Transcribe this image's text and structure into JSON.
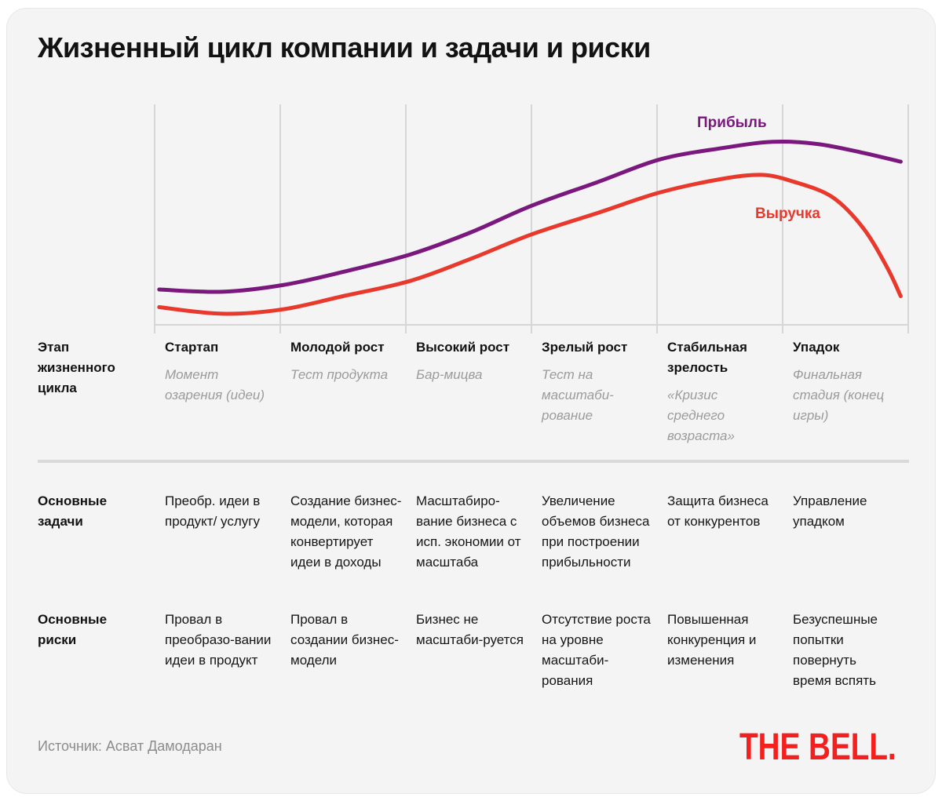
{
  "title": "Жизненный цикл компании и задачи и риски",
  "chart_data": {
    "type": "line",
    "title": "Жизненный цикл компании и задачи и риски",
    "xlabel": "Этап жизненного цикла",
    "ylabel": "",
    "ylim": [
      0,
      100
    ],
    "grid": "vertical-only",
    "legend_position": "inline-labels",
    "categories": [
      "Стартап",
      "Молодой рост",
      "Высокий рост",
      "Зрелый рост",
      "Стабильная зрелость",
      "Упадок"
    ],
    "series": [
      {
        "name": "Прибыль",
        "color": "#7a187e",
        "points": [
          [
            0.006,
            16
          ],
          [
            0.09,
            15
          ],
          [
            0.17,
            18
          ],
          [
            0.25,
            24
          ],
          [
            0.34,
            32
          ],
          [
            0.42,
            42
          ],
          [
            0.5,
            54
          ],
          [
            0.59,
            65
          ],
          [
            0.67,
            75
          ],
          [
            0.75,
            80
          ],
          [
            0.82,
            83
          ],
          [
            0.88,
            82
          ],
          [
            0.94,
            78
          ],
          [
            0.99,
            74
          ]
        ]
      },
      {
        "name": "Выручка",
        "color": "#e8392c",
        "points": [
          [
            0.006,
            8
          ],
          [
            0.09,
            5
          ],
          [
            0.17,
            7
          ],
          [
            0.25,
            13
          ],
          [
            0.34,
            20
          ],
          [
            0.42,
            30
          ],
          [
            0.5,
            41
          ],
          [
            0.59,
            51
          ],
          [
            0.67,
            60
          ],
          [
            0.75,
            66
          ],
          [
            0.805,
            68
          ],
          [
            0.847,
            65
          ],
          [
            0.899,
            58
          ],
          [
            0.94,
            44
          ],
          [
            0.972,
            26
          ],
          [
            0.99,
            13
          ]
        ]
      }
    ]
  },
  "table": {
    "stage_row": {
      "header": "Этап жизненного цикла",
      "cells": [
        {
          "name": "Стартап",
          "subtitle": "Момент озарения (идеи)"
        },
        {
          "name": "Молодой рост",
          "subtitle": "Тест продукта"
        },
        {
          "name": "Высокий рост",
          "subtitle": "Бар-мицва"
        },
        {
          "name": "Зрелый рост",
          "subtitle": "Тест на масштаби-рование"
        },
        {
          "name": "Стабильная зрелость",
          "subtitle": "«Кризис среднего возраста»"
        },
        {
          "name": "Упадок",
          "subtitle": "Финальная стадия (конец игры)"
        }
      ]
    },
    "tasks_row": {
      "header": "Основные задачи",
      "cells": [
        "Преобр. идеи в продукт/ услугу",
        "Создание бизнес-модели, которая конвертирует идеи в доходы",
        "Масштабиро-вание бизнеса с исп. экономии от масштаба",
        "Увеличение объемов бизнеса при построении прибыльности",
        "Защита бизнеса от конкурентов",
        "Управление упадком"
      ]
    },
    "risks_row": {
      "header": "Основные риски",
      "cells": [
        "Провал в преобразо-вании идеи в продукт",
        "Провал в создании бизнес-модели",
        "Бизнес не масштаби-руется",
        "Отсутствие роста на уровне масштаби-рования",
        "Повышенная конкуренция и изменения",
        "Безуспешные попытки повернуть время вспять"
      ]
    }
  },
  "footer": {
    "source": "Источник: Асват Дамодаран",
    "logo": "THE BELL."
  }
}
